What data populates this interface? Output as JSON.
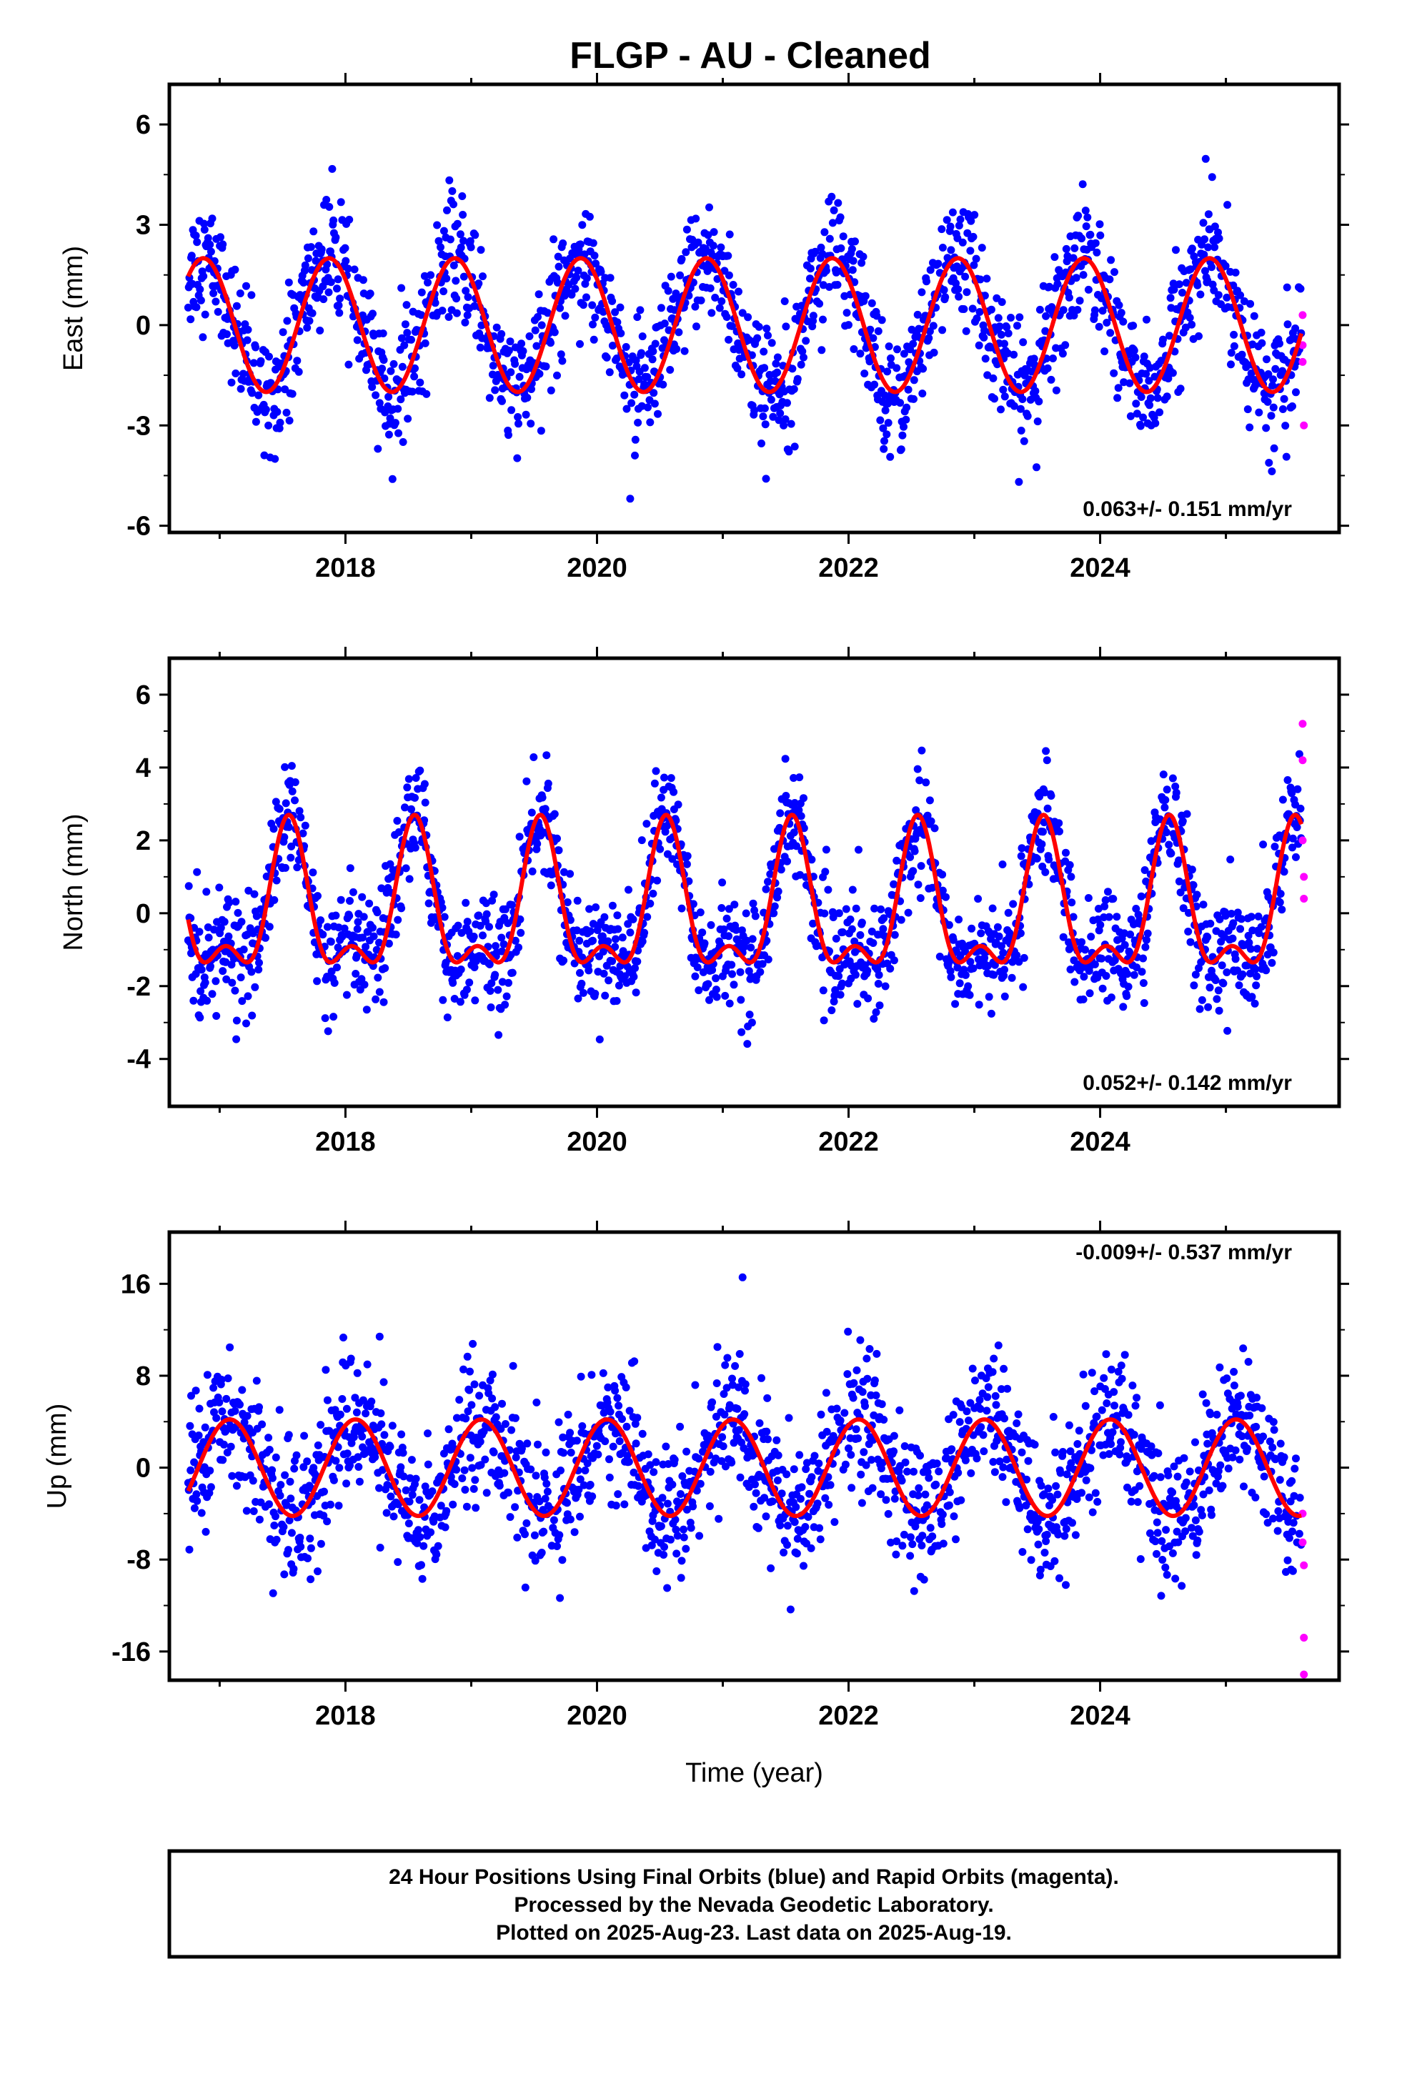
{
  "title": "FLGP  - AU - Cleaned",
  "colors": {
    "final": "#0000ff",
    "rapid": "#ff00ff",
    "model": "#ff0000",
    "frame": "#000000"
  },
  "chart_data": [
    {
      "type": "scatter",
      "component": "east",
      "ylabel": "East (mm)",
      "xlim": [
        2016.6,
        2025.9
      ],
      "ylim": [
        -6.2,
        7.2
      ],
      "yticks": [
        "-6",
        "-3",
        "0",
        "3",
        "6"
      ],
      "xticks": [
        "2018",
        "2020",
        "2022",
        "2024"
      ],
      "rate_label": "0.063+/- 0.151 mm/yr",
      "data_start": 2016.75,
      "data_end": 2025.6,
      "seasonal": {
        "amplitude": 2.0,
        "semiannual": 0.0,
        "peak_phase": 0.87,
        "scatter": 0.9
      },
      "final_points": {
        "x": [
          2016.75,
          2025.6
        ],
        "y": [
          0.0,
          -1.4
        ]
      },
      "rapid_points": {
        "x": [
          2025.61,
          2025.61,
          2025.61,
          2025.62
        ],
        "y": [
          0.3,
          -0.6,
          -1.1,
          -3.0
        ]
      }
    },
    {
      "type": "scatter",
      "component": "north",
      "ylabel": "North (mm)",
      "xlim": [
        2016.6,
        2025.9
      ],
      "ylim": [
        -5.3,
        7.0
      ],
      "yticks": [
        "-4",
        "-2",
        "0",
        "2",
        "4",
        "6"
      ],
      "xticks": [
        "2018",
        "2020",
        "2022",
        "2024"
      ],
      "rate_label": "0.052+/- 0.142 mm/yr",
      "data_start": 2016.75,
      "data_end": 2025.6,
      "seasonal": {
        "amplitude": 1.8,
        "semiannual": 0.9,
        "peak_phase": 0.55,
        "scatter": 0.75
      },
      "final_points": {
        "x": [
          2016.75,
          2025.6
        ],
        "y": [
          0.5,
          2.4
        ]
      },
      "rapid_points": {
        "x": [
          2025.61,
          2025.61,
          2025.61,
          2025.62,
          2025.62
        ],
        "y": [
          5.2,
          4.2,
          2.0,
          1.0,
          0.4
        ]
      }
    },
    {
      "type": "scatter",
      "component": "up",
      "ylabel": "Up (mm)",
      "xlim": [
        2016.6,
        2025.9
      ],
      "ylim": [
        -18.5,
        20.5
      ],
      "yticks": [
        "-16",
        "-8",
        "0",
        "8",
        "16"
      ],
      "xticks": [
        "2018",
        "2020",
        "2022",
        "2024"
      ],
      "xlabel": "Time (year)",
      "rate_label": "-0.009+/- 0.537 mm/yr",
      "data_start": 2016.75,
      "data_end": 2025.6,
      "seasonal": {
        "amplitude": 4.2,
        "semiannual": 0.0,
        "peak_phase": 0.08,
        "scatter": 3.0
      },
      "final_points": {
        "x": [
          2016.75,
          2025.6
        ],
        "y": [
          -2.5,
          -3.5
        ]
      },
      "rapid_points": {
        "x": [
          2025.61,
          2025.61,
          2025.62,
          2025.62,
          2025.62
        ],
        "y": [
          -4.0,
          -6.5,
          -8.5,
          -14.8,
          -18.0
        ]
      }
    }
  ],
  "footer": {
    "line1": "24 Hour Positions Using Final Orbits (blue) and Rapid Orbits (magenta).",
    "line2": "Processed by the Nevada Geodetic Laboratory.",
    "line3": "Plotted on 2025-Aug-23. Last data on 2025-Aug-19."
  }
}
